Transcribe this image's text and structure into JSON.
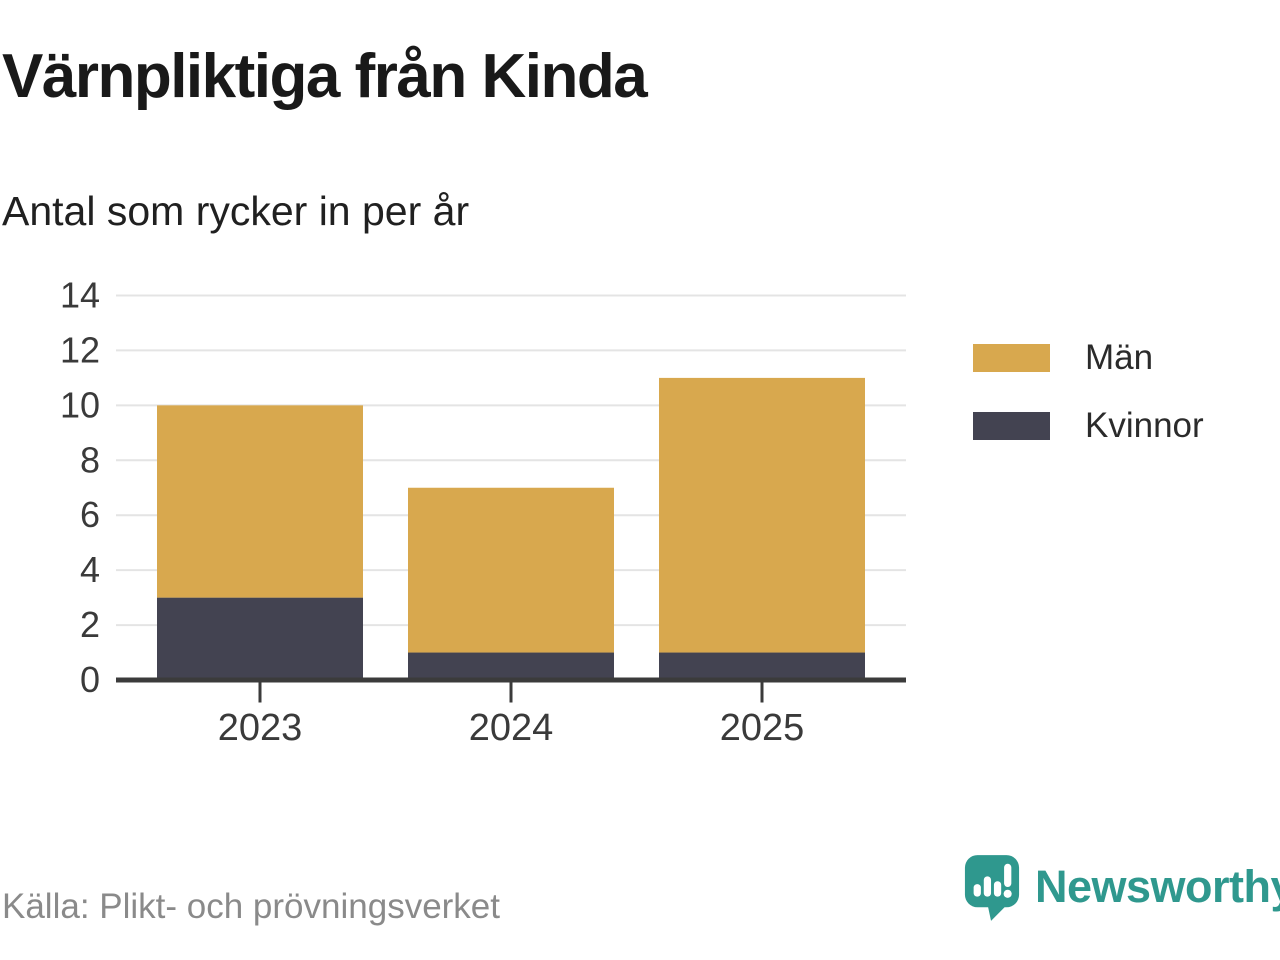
{
  "header": {
    "title": "Värnpliktiga från Kinda",
    "subtitle": "Antal som rycker in per år"
  },
  "chart_data": {
    "type": "bar",
    "stacked": true,
    "title": "Värnpliktiga från Kinda",
    "subtitle": "Antal som rycker in per år",
    "categories": [
      "2023",
      "2024",
      "2025"
    ],
    "series": [
      {
        "name": "Män",
        "color": "#d8a84e",
        "values": [
          7,
          6,
          10
        ]
      },
      {
        "name": "Kvinnor",
        "color": "#434351",
        "values": [
          3,
          1,
          1
        ]
      }
    ],
    "stack_order": [
      "Kvinnor",
      "Män"
    ],
    "totals": [
      10,
      7,
      11
    ],
    "xlabel": "",
    "ylabel": "",
    "ylim": [
      0,
      14
    ],
    "yticks": [
      0,
      2,
      4,
      6,
      8,
      10,
      12,
      14
    ],
    "grid": "horizontal",
    "legend_position": "right",
    "axis_color": "#3b3b3b",
    "grid_color": "#e4e4e4",
    "label_color": "#3a3a3a"
  },
  "footer": {
    "source": "Källa: Plikt- och prövningsverket",
    "brand": "Newsworthy",
    "brand_color": "#2f988e",
    "logo_icon": "speech-bubble-bar-chart-icon"
  }
}
